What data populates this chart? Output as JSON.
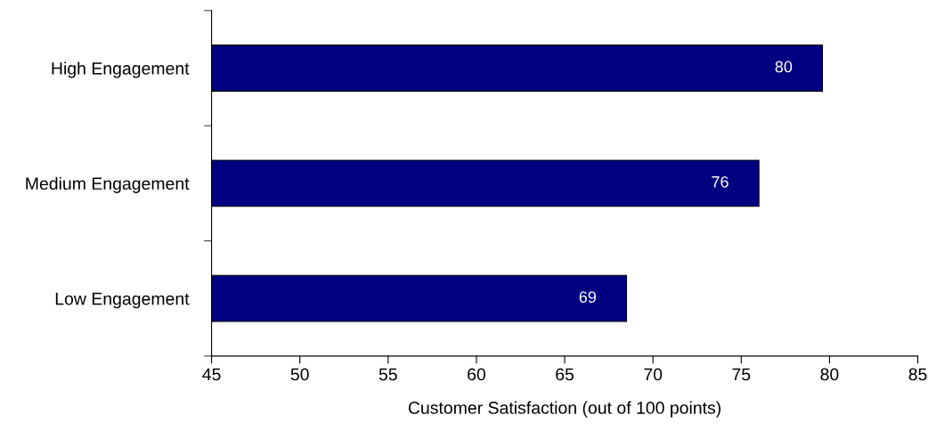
{
  "chart_data": {
    "type": "bar",
    "orientation": "horizontal",
    "xlabel": "Customer Satisfaction (out of 100 points)",
    "categories": [
      "High Engagement",
      "Medium Engagement",
      "Low Engagement"
    ],
    "values": [
      79.6,
      76,
      68.5
    ],
    "value_labels": [
      "80",
      "76",
      "69"
    ],
    "color": "#000080",
    "xlim": [
      45,
      85
    ],
    "xticks": [
      45,
      50,
      55,
      60,
      65,
      70,
      75,
      80,
      85
    ],
    "grid": false,
    "legend": false
  }
}
